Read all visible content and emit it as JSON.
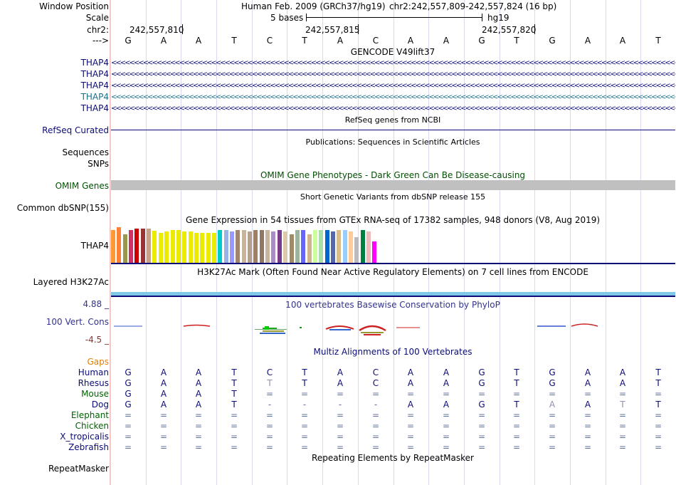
{
  "header": {
    "window_position_label": "Window Position",
    "scale_label": "Scale",
    "chr_label": "chr2:",
    "strand_label": "--->",
    "assembly": "Human Feb. 2009 (GRCh37/hg19)",
    "position": "chr2:242,557,809-242,557,824 (16 bp)",
    "scale_text": "5 bases",
    "db": "hg19",
    "coords": [
      "242,557,810",
      "242,557,815",
      "242,557,820"
    ],
    "bases": [
      "G",
      "A",
      "A",
      "T",
      "C",
      "T",
      "A",
      "C",
      "A",
      "A",
      "G",
      "T",
      "G",
      "A",
      "A",
      "T"
    ]
  },
  "tracks": {
    "gencode": {
      "title": "GENCODE V49lift37",
      "items": [
        {
          "label": "THAP4",
          "color": "#0c0c78"
        },
        {
          "label": "THAP4",
          "color": "#0c0c78"
        },
        {
          "label": "THAP4",
          "color": "#0c0c78"
        },
        {
          "label": "THAP4",
          "color": "#1a6e8a"
        },
        {
          "label": "THAP4",
          "color": "#0c0c78"
        }
      ]
    },
    "refseq": {
      "title": "RefSeq genes from NCBI",
      "label": "RefSeq Curated",
      "color": "#0c0c78"
    },
    "publications": {
      "title": "Publications: Sequences in Scientific Articles",
      "labels": [
        "Sequences",
        "SNPs"
      ]
    },
    "omim": {
      "title": "OMIM Gene Phenotypes - Dark Green Can Be Disease-causing",
      "label": "OMIM Genes",
      "color": "#005000"
    },
    "dbsnp": {
      "title": "Short Genetic Variants from dbSNP release 155",
      "label": "Common dbSNP(155)"
    },
    "gtex": {
      "title": "Gene Expression in 54 tissues from GTEx RNA-seq of 17382 samples, 948 donors (V8, Aug 2019)",
      "label": "THAP4",
      "bar_colors": [
        "#ff9933",
        "#ff7f33",
        "#99994d",
        "#cc3366",
        "#cc0000",
        "#993333",
        "#c8a08c",
        "#ebeb00",
        "#ebeb00",
        "#ebeb00",
        "#ebeb00",
        "#ebeb00",
        "#ebeb00",
        "#ebeb00",
        "#ebeb00",
        "#ebeb00",
        "#ebeb00",
        "#ebeb00",
        "#00cccc",
        "#99b3e6",
        "#9999ff",
        "#a0866e",
        "#c8b49b",
        "#b4a08c",
        "#a08064",
        "#8c7864",
        "#c8b4a0",
        "#aa8dc8",
        "#783c8c",
        "#dcc8aa",
        "#a08c64",
        "#9bb4a0",
        "#6666ff",
        "#d2b48c",
        "#ccff99",
        "#aaddaa",
        "#0066cc",
        "#5566aa",
        "#ddbb88",
        "#99ccff",
        "#ffcc99",
        "#bbbbbb",
        "#008040",
        "#eebbbb",
        "#ff00ff"
      ],
      "bar_values": [
        46,
        50,
        40,
        46,
        48,
        48,
        48,
        45,
        42,
        44,
        46,
        46,
        44,
        44,
        42,
        42,
        42,
        42,
        46,
        46,
        44,
        46,
        46,
        44,
        46,
        46,
        46,
        44,
        46,
        44,
        40,
        46,
        46,
        40,
        46,
        46,
        46,
        44,
        46,
        46,
        44,
        36,
        46,
        44,
        30
      ]
    },
    "h3k27ac": {
      "title": "H3K27Ac Mark (Often Found Near Active Regulatory Elements) on 7 cell lines from ENCODE",
      "label": "Layered H3K27Ac"
    },
    "phylop": {
      "title": "100 vertebrates Basewise Conservation by PhyloP",
      "label": "100 Vert. Cons",
      "max": "4.88 _",
      "min": "-4.5 _"
    },
    "multiz": {
      "title": "Multiz Alignments of 100 Vertebrates",
      "gaps_label": "Gaps",
      "species": [
        {
          "name": "Human",
          "color": "#0c0c78",
          "seq": [
            "G",
            "A",
            "A",
            "T",
            "C",
            "T",
            "A",
            "C",
            "A",
            "A",
            "G",
            "T",
            "G",
            "A",
            "A",
            "T"
          ]
        },
        {
          "name": "Rhesus",
          "color": "#0c0c78",
          "seq": [
            "G",
            "A",
            "A",
            "T",
            "T",
            "T",
            "A",
            "C",
            "A",
            "A",
            "G",
            "T",
            "G",
            "A",
            "A",
            "T"
          ]
        },
        {
          "name": "Mouse",
          "color": "#006400",
          "seq": [
            "G",
            "A",
            "A",
            "T",
            "=",
            "=",
            "=",
            "=",
            "=",
            "=",
            "=",
            "=",
            "=",
            "=",
            "=",
            "="
          ]
        },
        {
          "name": "Dog",
          "color": "#0c0c78",
          "seq": [
            "G",
            "A",
            "A",
            "T",
            "-",
            "-",
            "-",
            "-",
            "A",
            "A",
            "G",
            "T",
            "A",
            "A",
            "T",
            "T"
          ]
        },
        {
          "name": "Elephant",
          "color": "#006400",
          "seq": [
            "=",
            "=",
            "=",
            "=",
            "=",
            "=",
            "=",
            "=",
            "=",
            "=",
            "=",
            "=",
            "=",
            "=",
            "=",
            "="
          ]
        },
        {
          "name": "Chicken",
          "color": "#006400",
          "seq": [
            "=",
            "=",
            "=",
            "=",
            "=",
            "=",
            "=",
            "=",
            "=",
            "=",
            "=",
            "=",
            "=",
            "=",
            "=",
            "="
          ]
        },
        {
          "name": "X_tropicalis",
          "color": "#0c0c78",
          "seq": [
            "=",
            "=",
            "=",
            "=",
            "=",
            "=",
            "=",
            "=",
            "=",
            "=",
            "=",
            "=",
            "=",
            "=",
            "=",
            "="
          ]
        },
        {
          "name": "Zebrafish",
          "color": "#0c0c78",
          "seq": [
            "=",
            "=",
            "=",
            "=",
            "=",
            "=",
            "=",
            "=",
            "=",
            "=",
            "=",
            "=",
            "=",
            "=",
            "=",
            "="
          ]
        }
      ]
    },
    "repeatmasker": {
      "title": "Repeating Elements by RepeatMasker",
      "label": "RepeatMasker"
    }
  }
}
